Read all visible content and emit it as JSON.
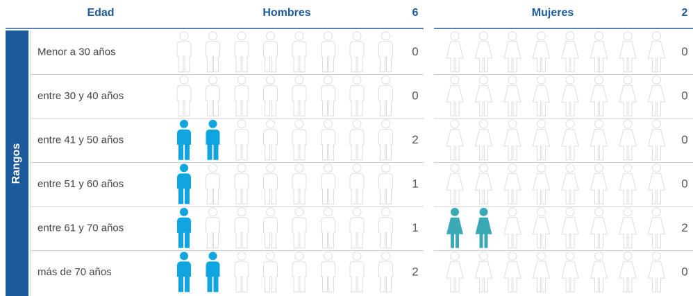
{
  "header": {
    "edad": "Edad",
    "hombres": "Hombres",
    "total_hombres": 6,
    "mujeres": "Mujeres",
    "total_mujeres": 2
  },
  "side_label": "Rangos",
  "rows": [
    {
      "label": "Menor a 30 años",
      "hombres": 0,
      "mujeres": 0
    },
    {
      "label": "entre 30 y 40 años",
      "hombres": 0,
      "mujeres": 0
    },
    {
      "label": "entre 41 y 50 años",
      "hombres": 2,
      "mujeres": 0
    },
    {
      "label": "entre 51 y 60 años",
      "hombres": 1,
      "mujeres": 0
    },
    {
      "label": "entre 61 y 70 años",
      "hombres": 1,
      "mujeres": 2
    },
    {
      "label": "más de 70 años",
      "hombres": 2,
      "mujeres": 0
    }
  ]
}
